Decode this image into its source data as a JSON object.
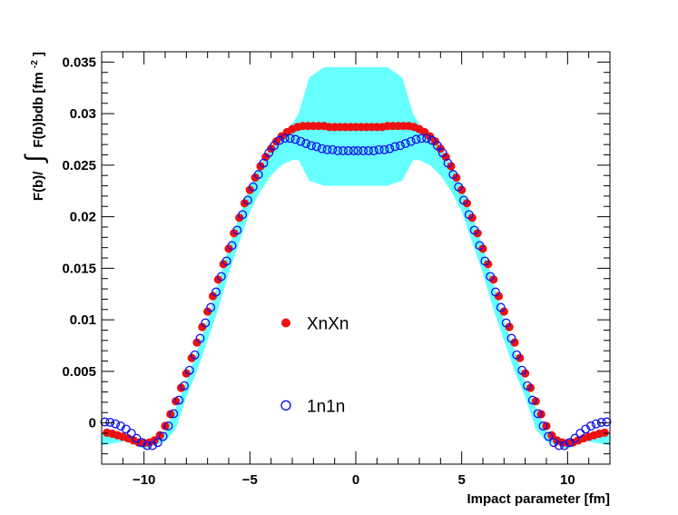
{
  "chart_data": {
    "type": "scatter",
    "title": "",
    "xlabel": "Impact parameter [fm]",
    "ylabel": {
      "prefix": "F(b)/",
      "integral_sign": "∫",
      "body": "F(b)bdb [fm",
      "superscript": "-2",
      "suffix": "]"
    },
    "xlim": [
      -12,
      12
    ],
    "ylim": [
      -0.004,
      0.036
    ],
    "x_ticks": [
      {
        "value": -10,
        "label": "−10"
      },
      {
        "value": -5,
        "label": "−5"
      },
      {
        "value": 0,
        "label": "0"
      },
      {
        "value": 5,
        "label": "5"
      },
      {
        "value": 10,
        "label": "10"
      }
    ],
    "y_ticks": [
      {
        "value": 0,
        "label": "0"
      },
      {
        "value": 0.005,
        "label": "0.005"
      },
      {
        "value": 0.01,
        "label": "0.01"
      },
      {
        "value": 0.015,
        "label": "0.015"
      },
      {
        "value": 0.02,
        "label": "0.02"
      },
      {
        "value": 0.025,
        "label": "0.025"
      },
      {
        "value": 0.03,
        "label": "0.03"
      },
      {
        "value": 0.035,
        "label": "0.035"
      }
    ],
    "band": {
      "color": "#66ffff",
      "upper": [
        [
          -12.0,
          -0.0022
        ],
        [
          -11.0,
          -0.0018
        ],
        [
          -10.0,
          -0.0018
        ],
        [
          -9.0,
          -0.0008
        ],
        [
          -8.5,
          0.0015
        ],
        [
          -8.0,
          0.004
        ],
        [
          -7.5,
          0.007
        ],
        [
          -7.0,
          0.01
        ],
        [
          -6.5,
          0.0135
        ],
        [
          -6.0,
          0.017
        ],
        [
          -5.5,
          0.02
        ],
        [
          -5.0,
          0.023
        ],
        [
          -4.5,
          0.025
        ],
        [
          -4.0,
          0.0268
        ],
        [
          -3.5,
          0.028
        ],
        [
          -3.0,
          0.029
        ],
        [
          -2.7,
          0.03
        ],
        [
          -2.2,
          0.0335
        ],
        [
          -1.5,
          0.0345
        ],
        [
          1.5,
          0.0345
        ],
        [
          2.2,
          0.0335
        ],
        [
          2.7,
          0.03
        ],
        [
          3.0,
          0.029
        ],
        [
          3.5,
          0.028
        ],
        [
          4.0,
          0.0268
        ],
        [
          4.5,
          0.025
        ],
        [
          5.0,
          0.023
        ],
        [
          5.5,
          0.02
        ],
        [
          6.0,
          0.017
        ],
        [
          6.5,
          0.0135
        ],
        [
          7.0,
          0.01
        ],
        [
          7.5,
          0.007
        ],
        [
          8.0,
          0.004
        ],
        [
          8.5,
          0.0015
        ],
        [
          9.0,
          -0.0008
        ],
        [
          10.0,
          -0.0018
        ],
        [
          11.0,
          -0.0018
        ],
        [
          12.0,
          -0.0022
        ]
      ],
      "lower": [
        [
          12.0,
          -0.001
        ],
        [
          11.0,
          -0.0016
        ],
        [
          10.0,
          -0.0025
        ],
        [
          9.0,
          -0.0018
        ],
        [
          8.5,
          -0.0006
        ],
        [
          8.0,
          0.0025
        ],
        [
          7.5,
          0.005
        ],
        [
          7.0,
          0.008
        ],
        [
          6.5,
          0.011
        ],
        [
          6.0,
          0.0145
        ],
        [
          5.5,
          0.0175
        ],
        [
          5.0,
          0.0205
        ],
        [
          4.5,
          0.0225
        ],
        [
          4.0,
          0.024
        ],
        [
          3.5,
          0.025
        ],
        [
          3.0,
          0.0255
        ],
        [
          2.7,
          0.0255
        ],
        [
          2.2,
          0.0235
        ],
        [
          1.5,
          0.023
        ],
        [
          -1.5,
          0.023
        ],
        [
          -2.2,
          0.0235
        ],
        [
          -2.7,
          0.0255
        ],
        [
          -3.0,
          0.0255
        ],
        [
          -3.5,
          0.025
        ],
        [
          -4.0,
          0.024
        ],
        [
          -4.5,
          0.0225
        ],
        [
          -5.0,
          0.0205
        ],
        [
          -5.5,
          0.0175
        ],
        [
          -6.0,
          0.0145
        ],
        [
          -6.5,
          0.011
        ],
        [
          -7.0,
          0.008
        ],
        [
          -7.5,
          0.005
        ],
        [
          -8.0,
          0.0025
        ],
        [
          -8.5,
          -0.0006
        ],
        [
          -9.0,
          -0.0018
        ],
        [
          -10.0,
          -0.0025
        ],
        [
          -11.0,
          -0.0016
        ],
        [
          -12.0,
          -0.001
        ]
      ]
    },
    "series": [
      {
        "name": "XnXn",
        "marker": "filled-circle",
        "color": "#ee1111",
        "x": [
          -11.75,
          -11.5,
          -11.25,
          -11.0,
          -10.75,
          -10.5,
          -10.25,
          -10.0,
          -9.75,
          -9.5,
          -9.25,
          -9.0,
          -8.75,
          -8.5,
          -8.25,
          -8.0,
          -7.75,
          -7.5,
          -7.25,
          -7.0,
          -6.75,
          -6.5,
          -6.25,
          -6.0,
          -5.75,
          -5.5,
          -5.25,
          -5.0,
          -4.75,
          -4.5,
          -4.25,
          -4.0,
          -3.75,
          -3.5,
          -3.25,
          -3.0,
          -2.75,
          -2.5,
          -2.25,
          -2.0,
          -1.75,
          -1.5,
          -1.25,
          -1.0,
          -0.75,
          -0.5,
          -0.25,
          0.0,
          0.25,
          0.5,
          0.75,
          1.0,
          1.25,
          1.5,
          1.75,
          2.0,
          2.25,
          2.5,
          2.75,
          3.0,
          3.25,
          3.5,
          3.75,
          4.0,
          4.25,
          4.5,
          4.75,
          5.0,
          5.25,
          5.5,
          5.75,
          6.0,
          6.25,
          6.5,
          6.75,
          7.0,
          7.25,
          7.5,
          7.75,
          8.0,
          8.25,
          8.5,
          8.75,
          9.0,
          9.25,
          9.5,
          9.75,
          10.0,
          10.25,
          10.5,
          10.75,
          11.0,
          11.25,
          11.5,
          11.75
        ],
        "y": [
          -0.00095,
          -0.00105,
          -0.0012,
          -0.00135,
          -0.0015,
          -0.0017,
          -0.0019,
          -0.00195,
          -0.0019,
          -0.0017,
          -0.0012,
          -0.0003,
          0.00085,
          0.0021,
          0.0034,
          0.0048,
          0.0063,
          0.0078,
          0.0093,
          0.0108,
          0.0123,
          0.0139,
          0.0154,
          0.0169,
          0.0184,
          0.0199,
          0.0213,
          0.0226,
          0.0238,
          0.0249,
          0.0258,
          0.0266,
          0.0273,
          0.0278,
          0.0282,
          0.0285,
          0.0287,
          0.0288,
          0.0288,
          0.0288,
          0.0288,
          0.0288,
          0.0287,
          0.0287,
          0.0287,
          0.0287,
          0.0287,
          0.0287,
          0.0287,
          0.0287,
          0.0287,
          0.0287,
          0.0287,
          0.0288,
          0.0288,
          0.0288,
          0.0288,
          0.0288,
          0.0287,
          0.0285,
          0.0282,
          0.0278,
          0.0273,
          0.0266,
          0.0258,
          0.0249,
          0.0238,
          0.0226,
          0.0213,
          0.0199,
          0.0184,
          0.0169,
          0.0154,
          0.0139,
          0.0123,
          0.0108,
          0.0093,
          0.0078,
          0.0063,
          0.0048,
          0.0034,
          0.0021,
          0.00085,
          -0.0003,
          -0.0012,
          -0.0017,
          -0.0019,
          -0.00195,
          -0.0019,
          -0.0017,
          -0.0015,
          -0.00135,
          -0.0012,
          -0.00105,
          -0.00095
        ]
      },
      {
        "name": "1n1n",
        "marker": "open-circle",
        "color": "#1111ee",
        "x": [
          -11.85,
          -11.6,
          -11.35,
          -11.1,
          -10.85,
          -10.6,
          -10.35,
          -10.1,
          -9.85,
          -9.6,
          -9.35,
          -9.1,
          -8.85,
          -8.6,
          -8.35,
          -8.1,
          -7.85,
          -7.6,
          -7.35,
          -7.1,
          -6.85,
          -6.6,
          -6.35,
          -6.1,
          -5.85,
          -5.6,
          -5.35,
          -5.1,
          -4.85,
          -4.6,
          -4.35,
          -4.1,
          -3.85,
          -3.6,
          -3.35,
          -3.1,
          -2.85,
          -2.6,
          -2.35,
          -2.1,
          -1.85,
          -1.6,
          -1.35,
          -1.1,
          -0.85,
          -0.6,
          -0.35,
          -0.1,
          0.1,
          0.35,
          0.6,
          0.85,
          1.1,
          1.35,
          1.6,
          1.85,
          2.1,
          2.35,
          2.6,
          2.85,
          3.1,
          3.35,
          3.6,
          3.85,
          4.1,
          4.35,
          4.6,
          4.85,
          5.1,
          5.35,
          5.6,
          5.85,
          6.1,
          6.35,
          6.6,
          6.85,
          7.1,
          7.35,
          7.6,
          7.85,
          8.1,
          8.35,
          8.6,
          8.85,
          9.1,
          9.35,
          9.6,
          9.85,
          10.1,
          10.35,
          10.6,
          10.85,
          11.1,
          11.35,
          11.6,
          11.85
        ],
        "y": [
          0.0001,
          5e-05,
          -0.0001,
          -0.0003,
          -0.0006,
          -0.001,
          -0.0015,
          -0.0019,
          -0.0022,
          -0.0022,
          -0.0019,
          -0.0013,
          -0.0003,
          0.0009,
          0.0022,
          0.0036,
          0.0051,
          0.0066,
          0.0082,
          0.0097,
          0.0112,
          0.0127,
          0.0142,
          0.0157,
          0.0172,
          0.0187,
          0.0202,
          0.0216,
          0.0229,
          0.0241,
          0.0252,
          0.0262,
          0.0269,
          0.0274,
          0.0276,
          0.0276,
          0.0275,
          0.0273,
          0.0271,
          0.0269,
          0.0268,
          0.0266,
          0.0265,
          0.0265,
          0.0264,
          0.0264,
          0.0264,
          0.0264,
          0.0264,
          0.0264,
          0.0264,
          0.0264,
          0.0265,
          0.0265,
          0.0266,
          0.0268,
          0.0269,
          0.0271,
          0.0273,
          0.0275,
          0.0276,
          0.0276,
          0.0274,
          0.0269,
          0.0262,
          0.0252,
          0.0241,
          0.0229,
          0.0216,
          0.0202,
          0.0187,
          0.0172,
          0.0157,
          0.0142,
          0.0127,
          0.0112,
          0.0097,
          0.0082,
          0.0066,
          0.0051,
          0.0036,
          0.0022,
          0.0009,
          -0.0003,
          -0.0013,
          -0.0019,
          -0.0022,
          -0.0022,
          -0.0019,
          -0.0015,
          -0.001,
          -0.0006,
          -0.0003,
          -0.0001,
          5e-05,
          0.0001
        ]
      }
    ],
    "legend": [
      {
        "label": "XnXn",
        "marker": "filled-circle",
        "color": "#ee1111"
      },
      {
        "label": "1n1n",
        "marker": "open-circle",
        "color": "#1111ee"
      }
    ]
  }
}
